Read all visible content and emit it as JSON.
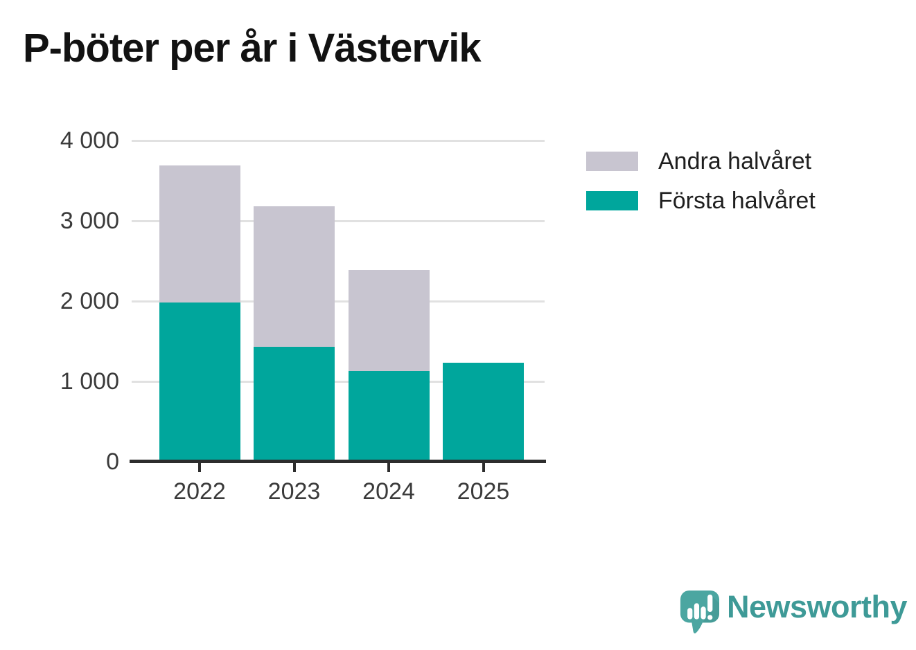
{
  "title": "P-böter per år i Västervik",
  "chart_data": {
    "type": "bar",
    "stacked": true,
    "title": "P-böter per år i Västervik",
    "categories": [
      "2022",
      "2023",
      "2024",
      "2025"
    ],
    "series": [
      {
        "name": "Första halvåret",
        "color": "#00A69C",
        "values": [
          1980,
          1430,
          1130,
          1230
        ]
      },
      {
        "name": "Andra halvåret",
        "color": "#C8C5D0",
        "values": [
          1710,
          1750,
          1260,
          0
        ]
      }
    ],
    "totals": [
      3690,
      3180,
      2390,
      1230
    ],
    "xlabel": "",
    "ylabel": "",
    "ylim": [
      0,
      4000
    ],
    "yticks": [
      0,
      1000,
      2000,
      3000,
      4000
    ],
    "ytick_labels": [
      "0",
      "1 000",
      "2 000",
      "3 000",
      "4 000"
    ],
    "grid": true,
    "legend_position": "top-right",
    "legend": [
      {
        "label": "Andra halvåret",
        "color": "#C8C5D0"
      },
      {
        "label": "Första halvåret",
        "color": "#00A69C"
      }
    ]
  },
  "branding": {
    "wordmark": "Newsworthy",
    "wordmark_color": "#3E9A97",
    "bubble_color": "#4BA6A1"
  },
  "colors": {
    "first_half": "#00A69C",
    "second_half": "#C8C5D0",
    "gridline": "#E1E1E1",
    "axis": "#2D2D2D",
    "tick_text": "#3A3A3A",
    "title_text": "#121212"
  }
}
